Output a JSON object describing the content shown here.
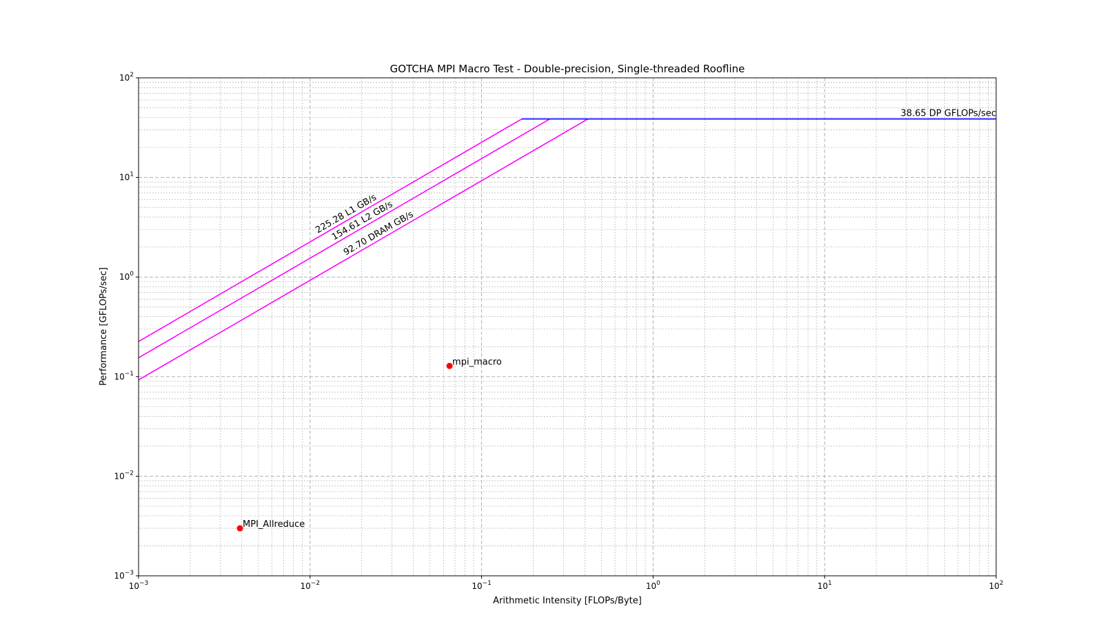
{
  "chart_data": {
    "type": "line",
    "title": "GOTCHA MPI Macro Test - Double-precision, Single-threaded Roofline",
    "xlabel": "Arithmetic Intensity [FLOPs/Byte]",
    "ylabel": "Performance [GFLOPs/sec]",
    "xscale": "log",
    "yscale": "log",
    "xlim": [
      0.001,
      100
    ],
    "ylim": [
      0.001,
      100
    ],
    "grid": true,
    "x_ticks": [
      {
        "base": "10",
        "exp": "−3",
        "value": 0.001
      },
      {
        "base": "10",
        "exp": "−2",
        "value": 0.01
      },
      {
        "base": "10",
        "exp": "−1",
        "value": 0.1
      },
      {
        "base": "10",
        "exp": "0",
        "value": 1
      },
      {
        "base": "10",
        "exp": "1",
        "value": 10
      },
      {
        "base": "10",
        "exp": "2",
        "value": 100
      }
    ],
    "y_ticks": [
      {
        "base": "10",
        "exp": "−3",
        "value": 0.001
      },
      {
        "base": "10",
        "exp": "−2",
        "value": 0.01
      },
      {
        "base": "10",
        "exp": "−1",
        "value": 0.1
      },
      {
        "base": "10",
        "exp": "0",
        "value": 1
      },
      {
        "base": "10",
        "exp": "1",
        "value": 10
      },
      {
        "base": "10",
        "exp": "2",
        "value": 100
      }
    ],
    "compute_roof": {
      "value": 38.65,
      "label": "38.65 DP GFLOPs/sec",
      "color": "#0000ff"
    },
    "bandwidth_roofs": [
      {
        "label": "225.28 L1 GB/s",
        "bandwidth": 225.28,
        "color": "#ff00ff"
      },
      {
        "label": "154.61 L2 GB/s",
        "bandwidth": 154.61,
        "color": "#ff00ff"
      },
      {
        "label": "92.70 DRAM GB/s",
        "bandwidth": 92.7,
        "color": "#ff00ff"
      }
    ],
    "points": [
      {
        "label": "mpi_macro",
        "x": 0.065,
        "y": 0.128,
        "color": "#ff0000"
      },
      {
        "label": "MPI_Allreduce",
        "x": 0.0039,
        "y": 0.003,
        "color": "#ff0000"
      }
    ]
  }
}
